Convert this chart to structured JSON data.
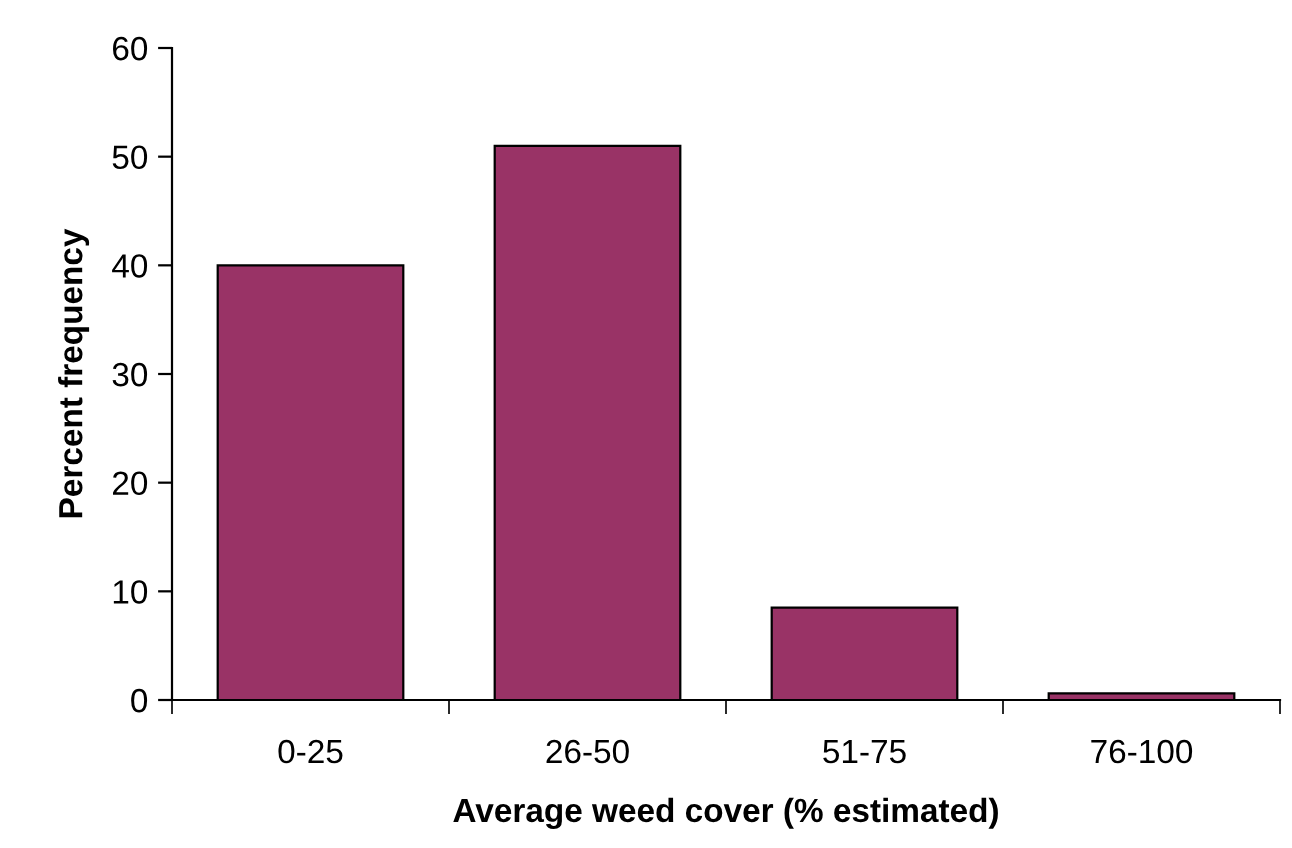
{
  "chart_data": {
    "type": "bar",
    "xlabel": "Average weed cover (% estimated)",
    "ylabel": "Percent frequency",
    "categories": [
      "0-25",
      "26-50",
      "51-75",
      "76-100"
    ],
    "values": [
      40,
      51,
      8.5,
      0.6
    ],
    "color": "#993366",
    "ylim": [
      0,
      60
    ],
    "yticks": [
      0,
      10,
      20,
      30,
      40,
      50,
      60
    ],
    "grid": false,
    "legend": false
  }
}
